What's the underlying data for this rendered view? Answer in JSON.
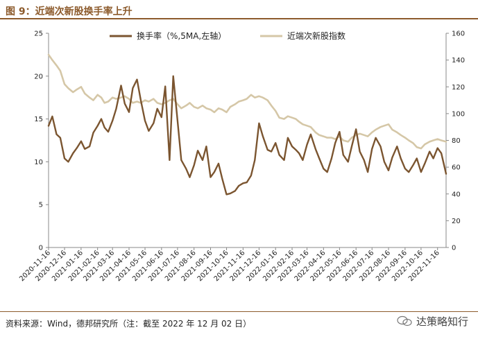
{
  "figure_title": "图 9：近端次新股换手率上升",
  "source_note": "资料来源：Wind，德邦研究所（注：截至 2022 年 12 月 02 日）",
  "watermark_text": "达策略知行",
  "colors": {
    "turnover": "#7b5530",
    "index": "#d5c7a7",
    "accent": "#8c5a2b"
  },
  "chart_data": {
    "type": "line",
    "title": "",
    "xlabel": "",
    "ylabel_left": "",
    "ylabel_right": "",
    "ylim_left": [
      0,
      25
    ],
    "ylim_right": [
      0,
      160
    ],
    "y_ticks_left": [
      "0",
      "5",
      "10",
      "15",
      "20",
      "25"
    ],
    "y_ticks_right": [
      "0",
      "20",
      "40",
      "60",
      "80",
      "100",
      "120",
      "140",
      "160"
    ],
    "x_tick_labels": [
      "2020-11-16",
      "2020-12-16",
      "2021-01-16",
      "2021-02-16",
      "2021-03-16",
      "2021-04-16",
      "2021-05-16",
      "2021-06-16",
      "2021-07-16",
      "2021-08-16",
      "2021-09-16",
      "2021-10-16",
      "2021-11-16",
      "2021-12-16",
      "2022-01-16",
      "2022-02-16",
      "2022-03-16",
      "2022-04-16",
      "2022-05-16",
      "2022-06-16",
      "2022-07-16",
      "2022-08-16",
      "2022-09-16",
      "2022-10-16",
      "2022-11-16"
    ],
    "grid": false,
    "legend_position": "top",
    "x": [
      "2020-11-16",
      "2020-11-23",
      "2020-12-01",
      "2020-12-08",
      "2020-12-16",
      "2020-12-23",
      "2021-01-01",
      "2021-01-08",
      "2021-01-16",
      "2021-01-23",
      "2021-02-01",
      "2021-02-08",
      "2021-02-16",
      "2021-02-23",
      "2021-03-01",
      "2021-03-08",
      "2021-03-16",
      "2021-03-23",
      "2021-04-01",
      "2021-04-08",
      "2021-04-16",
      "2021-04-23",
      "2021-05-01",
      "2021-05-08",
      "2021-05-16",
      "2021-05-23",
      "2021-06-01",
      "2021-06-08",
      "2021-06-16",
      "2021-06-23",
      "2021-07-01",
      "2021-07-08",
      "2021-07-16",
      "2021-07-23",
      "2021-08-01",
      "2021-08-08",
      "2021-08-16",
      "2021-08-23",
      "2021-09-01",
      "2021-09-08",
      "2021-09-16",
      "2021-09-23",
      "2021-10-01",
      "2021-10-08",
      "2021-10-16",
      "2021-10-23",
      "2021-11-01",
      "2021-11-08",
      "2021-11-16",
      "2021-11-23",
      "2021-12-01",
      "2021-12-08",
      "2021-12-16",
      "2021-12-23",
      "2022-01-01",
      "2022-01-08",
      "2022-01-16",
      "2022-01-23",
      "2022-02-01",
      "2022-02-08",
      "2022-02-16",
      "2022-02-23",
      "2022-03-01",
      "2022-03-08",
      "2022-03-16",
      "2022-03-23",
      "2022-04-01",
      "2022-04-08",
      "2022-04-16",
      "2022-04-23",
      "2022-05-01",
      "2022-05-08",
      "2022-05-16",
      "2022-05-23",
      "2022-06-01",
      "2022-06-08",
      "2022-06-16",
      "2022-06-23",
      "2022-07-01",
      "2022-07-08",
      "2022-07-16",
      "2022-07-23",
      "2022-08-01",
      "2022-08-08",
      "2022-08-16",
      "2022-08-23",
      "2022-09-01",
      "2022-09-08",
      "2022-09-16",
      "2022-09-23",
      "2022-10-01",
      "2022-10-08",
      "2022-10-16",
      "2022-10-23",
      "2022-11-01",
      "2022-11-08",
      "2022-11-16",
      "2022-11-23",
      "2022-12-02"
    ],
    "series": [
      {
        "name": "换手率（%,5MA,左轴）",
        "axis": "left",
        "values": [
          14.2,
          15.3,
          13.2,
          12.8,
          10.4,
          10.0,
          11.0,
          11.6,
          12.4,
          11.5,
          11.8,
          13.4,
          14.2,
          15.0,
          14.0,
          13.5,
          14.8,
          16.2,
          18.9,
          16.8,
          15.8,
          18.6,
          19.6,
          17.2,
          14.8,
          13.6,
          14.5,
          16.2,
          15.2,
          18.8,
          10.2,
          20.0,
          14.8,
          10.2,
          9.2,
          8.2,
          9.6,
          11.3,
          10.2,
          11.8,
          8.2,
          8.8,
          9.8,
          8.0,
          6.2,
          6.3,
          6.6,
          7.2,
          7.5,
          7.6,
          8.4,
          10.2,
          14.5,
          13.0,
          11.4,
          11.2,
          12.2,
          10.8,
          10.2,
          12.8,
          11.8,
          11.4,
          11.0,
          10.2,
          12.0,
          13.2,
          11.5,
          10.4,
          9.2,
          8.8,
          10.4,
          12.2,
          13.5,
          10.8,
          10.0,
          11.8,
          13.8,
          11.2,
          10.2,
          8.8,
          11.5,
          12.8,
          11.8,
          10.0,
          9.0,
          10.5,
          11.8,
          10.4,
          9.2,
          8.8,
          9.6,
          10.4,
          8.8,
          9.8,
          11.2,
          10.4,
          11.6,
          11.0,
          8.6
        ]
      },
      {
        "name": "近端次新股指数",
        "axis": "right",
        "values": [
          144,
          140,
          136,
          132,
          122,
          119,
          116,
          118,
          120,
          115,
          112,
          110,
          114,
          112,
          108,
          109,
          112,
          111,
          112,
          113,
          111,
          108,
          109,
          108,
          110,
          109,
          111,
          108,
          107,
          108,
          110,
          111,
          107,
          104,
          106,
          108,
          105,
          104,
          106,
          104,
          103,
          101,
          104,
          103,
          101,
          105,
          107,
          109,
          110,
          111,
          114,
          112,
          113,
          112,
          110,
          106,
          102,
          97,
          96,
          98,
          97,
          96,
          94,
          92,
          91,
          90,
          86,
          84,
          83,
          82,
          82,
          81,
          83,
          80,
          79,
          82,
          84,
          85,
          84,
          83,
          86,
          88,
          90,
          91,
          92,
          88,
          86,
          84,
          82,
          80,
          78,
          75,
          74,
          77,
          79,
          80,
          81,
          80,
          79
        ]
      }
    ]
  }
}
